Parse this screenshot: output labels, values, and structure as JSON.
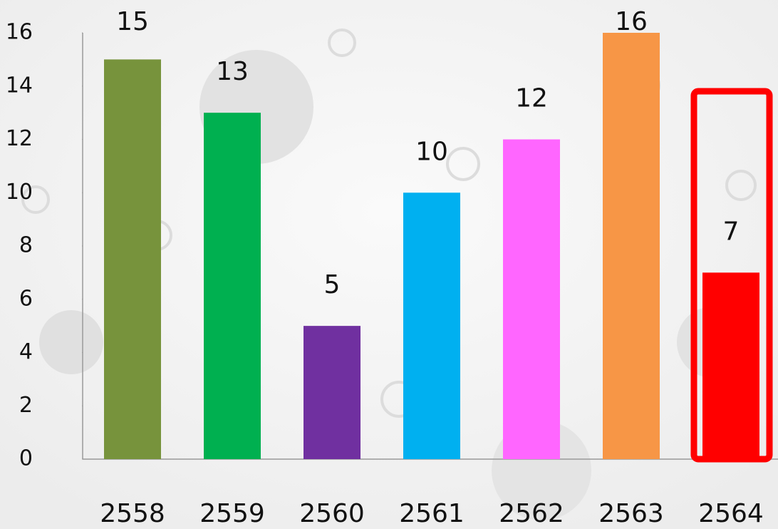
{
  "chart_data": {
    "type": "bar",
    "categories": [
      "2558",
      "2559",
      "2560",
      "2561",
      "2562",
      "2563",
      "2564"
    ],
    "values": [
      15,
      13,
      5,
      10,
      12,
      16,
      7
    ],
    "colors": [
      "#77933c",
      "#00b050",
      "#7030a0",
      "#00b0f0",
      "#ff66ff",
      "#f79646",
      "#ff0000"
    ],
    "ylim": [
      0,
      16
    ],
    "yticks": [
      0,
      2,
      4,
      6,
      8,
      10,
      12,
      14,
      16
    ]
  }
}
